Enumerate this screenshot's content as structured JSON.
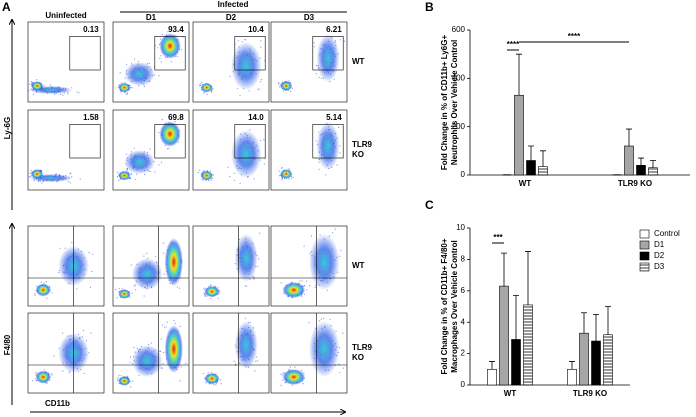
{
  "panel_a": {
    "label": "A",
    "infected_header": "Infected",
    "columns": [
      "Uninfected",
      "D1",
      "D2",
      "D3"
    ],
    "ly6g_rows": {
      "axis_label": "Ly-6G",
      "rows": [
        {
          "label": [
            "WT"
          ],
          "gates": [
            "0.13",
            "93.4",
            "10.4",
            "6.21"
          ]
        },
        {
          "label": [
            "TLR9",
            "KO"
          ],
          "gates": [
            "1.58",
            "69.8",
            "14.0",
            "5.14"
          ]
        }
      ]
    },
    "f480_rows": {
      "axis_label": "F4/80",
      "rows": [
        {
          "label": [
            "WT"
          ]
        },
        {
          "label": [
            "TLR9",
            "KO"
          ]
        }
      ]
    },
    "x_label": "CD11b"
  },
  "chart_data": [
    {
      "type": "bar",
      "panel_label": "B",
      "y_label": [
        "Fold Change in % of CD11b+ Ly6G+",
        "Neutrophils Over Vehicle Control"
      ],
      "categories": [
        "WT",
        "TLR9 KO"
      ],
      "series": [
        {
          "color": "#ffffff",
          "values": [
            1,
            1
          ],
          "errors": [
            0,
            0
          ]
        },
        {
          "color": "#a6a6a6",
          "values": [
            330,
            120
          ],
          "errors": [
            170,
            70
          ]
        },
        {
          "color": "#000000",
          "values": [
            60,
            40
          ],
          "errors": [
            60,
            30
          ]
        },
        {
          "color": "#ffffff",
          "hatch": "horizontal",
          "values": [
            35,
            30
          ],
          "errors": [
            65,
            30
          ]
        }
      ],
      "ylim": [
        0,
        600
      ],
      "yticks": [
        0,
        200,
        400,
        600
      ],
      "annotations": [
        "****",
        "****"
      ]
    },
    {
      "type": "bar",
      "panel_label": "C",
      "y_label": [
        "Fold Change in % of CD11b+ F4/80+",
        "Macrophages Over Vehicle Control"
      ],
      "categories": [
        "WT",
        "TLR9 KO"
      ],
      "series": [
        {
          "name": "Control",
          "color": "#ffffff",
          "values": [
            1,
            1
          ],
          "errors": [
            0.5,
            0.5
          ]
        },
        {
          "name": "D1",
          "color": "#a6a6a6",
          "values": [
            6.3,
            3.3
          ],
          "errors": [
            2.1,
            1.3
          ]
        },
        {
          "name": "D2",
          "color": "#000000",
          "values": [
            2.9,
            2.8
          ],
          "errors": [
            2.8,
            1.7
          ]
        },
        {
          "name": "D3",
          "color": "#ffffff",
          "hatch": "horizontal",
          "values": [
            5.1,
            3.2
          ],
          "errors": [
            3.4,
            1.8
          ]
        }
      ],
      "ylim": [
        0,
        10
      ],
      "yticks": [
        0,
        2,
        4,
        6,
        8,
        10
      ],
      "legend": "right",
      "annotations": [
        "***"
      ]
    }
  ]
}
